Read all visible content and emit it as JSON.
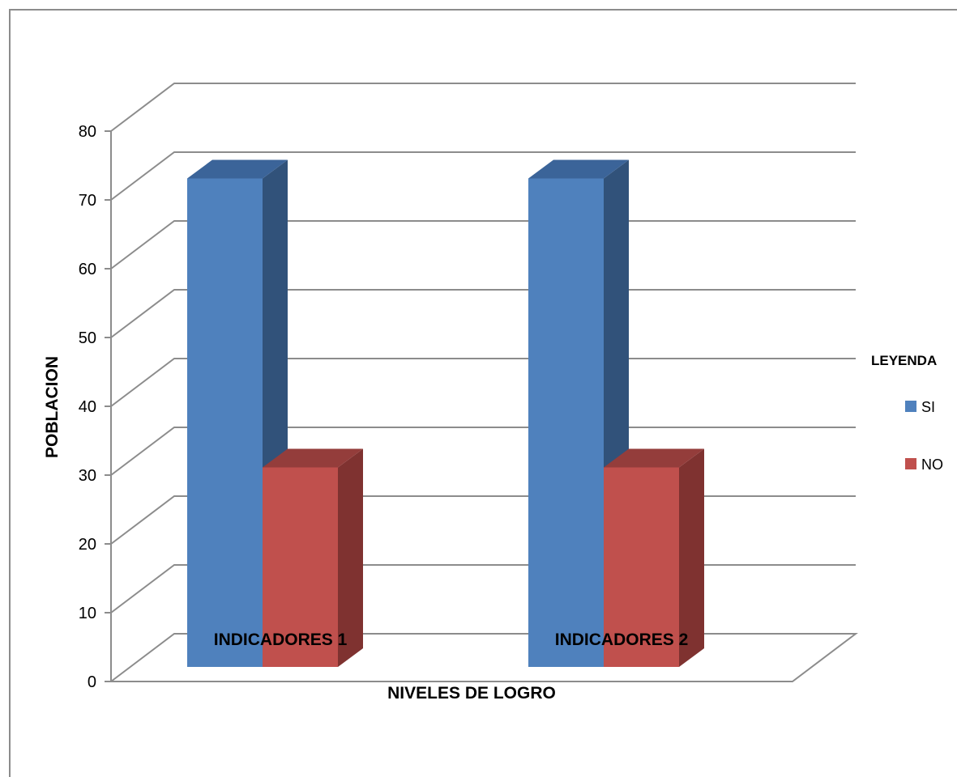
{
  "chart_data": {
    "type": "bar",
    "categories": [
      "INDICADORES 1",
      "INDICADORES 2"
    ],
    "series": [
      {
        "name": "SI",
        "values": [
          71,
          71
        ],
        "color": "#4f81bd",
        "side_color": "#31527a",
        "top_color": "#3b6499"
      },
      {
        "name": "NO",
        "values": [
          29,
          29
        ],
        "color": "#c0504d",
        "side_color": "#7f3230",
        "top_color": "#943d3b"
      }
    ],
    "ylim": [
      0,
      80
    ],
    "yticks": [
      "0",
      "10",
      "20",
      "30",
      "40",
      "50",
      "60",
      "70",
      "80"
    ],
    "xlabel": "NIVELES DE LOGRO",
    "ylabel": "POBLACION",
    "legend_title": "LEYENDA",
    "legend_position": "right",
    "grid": true,
    "three_d": true
  }
}
